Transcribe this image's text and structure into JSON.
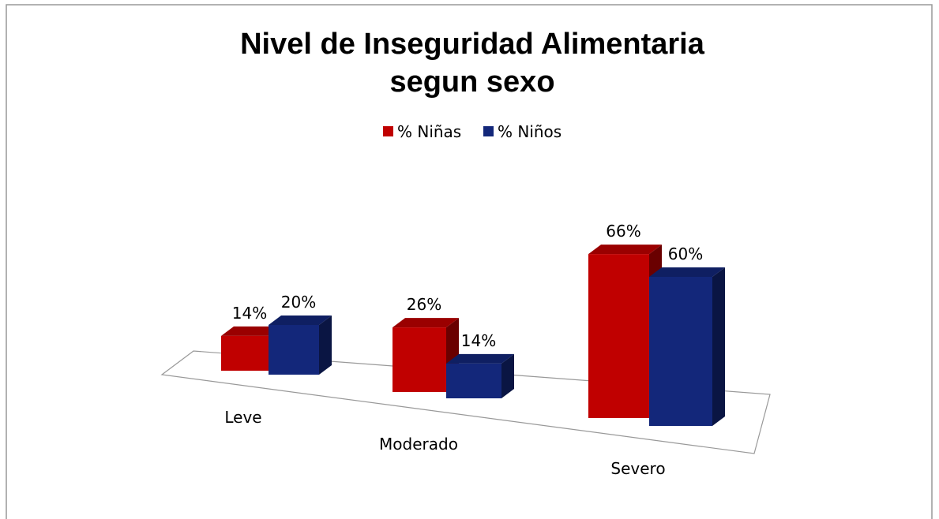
{
  "chart_data": {
    "type": "bar3d",
    "title": [
      "Nivel de Inseguridad  Alimentaria",
      "segun sexo"
    ],
    "categories": [
      "Leve",
      "Moderado",
      "Severo"
    ],
    "series": [
      {
        "name": "% Niñas",
        "color": "#c00000",
        "values": [
          14,
          26,
          66
        ],
        "value_labels": [
          "14%",
          "26%",
          "66%"
        ]
      },
      {
        "name": "% Niños",
        "color": "#13277a",
        "values": [
          20,
          14,
          60
        ],
        "value_labels": [
          "20%",
          "14%",
          "60%"
        ]
      }
    ]
  }
}
